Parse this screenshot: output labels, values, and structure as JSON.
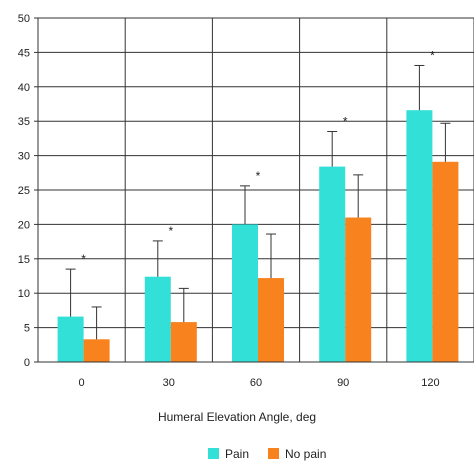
{
  "chart_data": {
    "type": "bar",
    "xlabel": "Humeral Elevation Angle, deg",
    "ylabel": "",
    "ylim": [
      0,
      50
    ],
    "yticks": [
      0,
      5,
      10,
      15,
      20,
      25,
      30,
      35,
      40,
      45,
      50
    ],
    "categories": [
      "0",
      "30",
      "60",
      "90",
      "120"
    ],
    "grid": true,
    "legend_position": "bottom-center",
    "significance_marker": "*",
    "significant": [
      true,
      true,
      true,
      true,
      true
    ],
    "series": [
      {
        "name": "Pain",
        "color": "#33e0d8",
        "values": [
          6.6,
          12.4,
          20.0,
          28.4,
          36.6
        ],
        "errors": [
          6.9,
          5.2,
          5.6,
          5.1,
          6.5
        ]
      },
      {
        "name": "No pain",
        "color": "#f7821e",
        "values": [
          3.3,
          5.8,
          12.2,
          21.0,
          29.1
        ],
        "errors": [
          4.7,
          4.9,
          6.4,
          6.2,
          5.6
        ]
      }
    ]
  }
}
